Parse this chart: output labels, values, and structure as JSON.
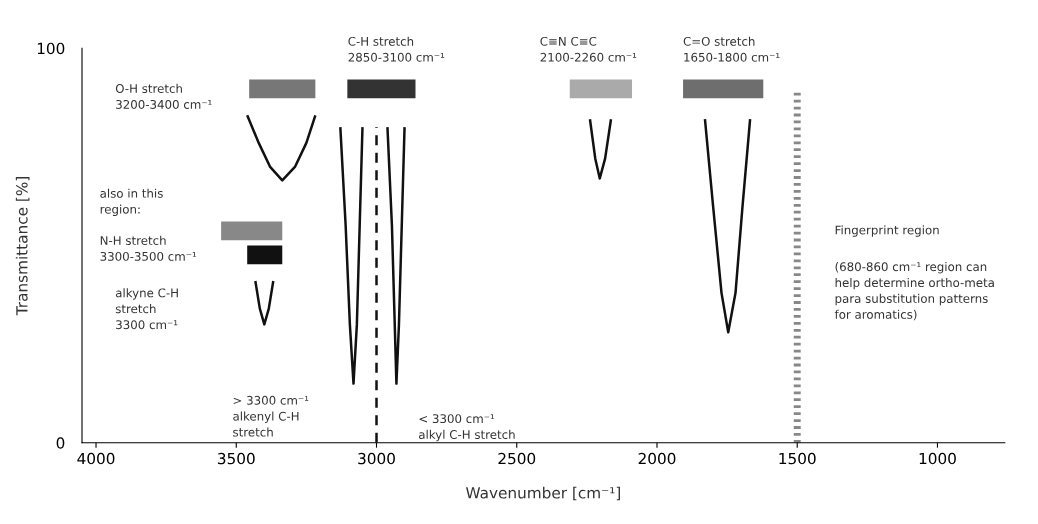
{
  "chart_data": {
    "type": "line",
    "xlabel": "Wavenumber [cm⁻¹]",
    "ylabel": "Transmittance [%]",
    "xlim": [
      4050,
      760
    ],
    "ylim": [
      0,
      100
    ],
    "xticks": [
      4000,
      3500,
      3000,
      2500,
      2000,
      1500,
      1000
    ],
    "yticks": [
      0,
      100
    ],
    "grid": false,
    "legend": false,
    "series": [
      {
        "color": "#111111",
        "line_style": "solid",
        "x": [
          3461,
          3420,
          3380,
          3336,
          3290,
          3250,
          3218
        ],
        "values": [
          83,
          76,
          70,
          66.5,
          70,
          76,
          83
        ]
      },
      {
        "color": "#111111",
        "line_style": "solid",
        "x": [
          3432,
          3416,
          3400,
          3384,
          3368
        ],
        "values": [
          41,
          34,
          30,
          34,
          41
        ]
      },
      {
        "color": "#111111",
        "line_style": "solid",
        "x": [
          3129,
          3110,
          3095,
          3082,
          3070,
          3060,
          3050
        ],
        "values": [
          80,
          55,
          30,
          15,
          30,
          55,
          80
        ]
      },
      {
        "color": "#111111",
        "line_style": "solid",
        "x": [
          2961,
          2945,
          2935,
          2929,
          2920,
          2910,
          2900
        ],
        "values": [
          80,
          55,
          30,
          15,
          30,
          55,
          80
        ]
      },
      {
        "color": "#111111",
        "line_style": "solid",
        "x": [
          2239,
          2220,
          2204,
          2185,
          2164
        ],
        "values": [
          82,
          72,
          67,
          72,
          82
        ]
      },
      {
        "color": "#111111",
        "line_style": "solid",
        "x": [
          1829,
          1800,
          1770,
          1746,
          1720,
          1695,
          1668
        ],
        "values": [
          82,
          60,
          38,
          28,
          38,
          60,
          82
        ]
      },
      {
        "color": "#111111",
        "line_style": "dashed",
        "x": [
          3000,
          3000
        ],
        "values": [
          0,
          80
        ]
      },
      {
        "color": "#888888",
        "line_style": "dotted",
        "x": [
          1500,
          1500
        ],
        "values": [
          0,
          89
        ]
      },
      {
        "color": "#777777",
        "x": [
          3454,
          3218
        ],
        "values": [
          89.7,
          89.7
        ]
      },
      {
        "color": "#333333",
        "x": [
          3104,
          2861
        ],
        "values": [
          89.7,
          89.7
        ]
      },
      {
        "color": "#aaaaaa",
        "x": [
          2311,
          2089
        ],
        "values": [
          89.7,
          89.7
        ]
      },
      {
        "color": "#6e6e6e",
        "x": [
          1907,
          1621
        ],
        "values": [
          89.7,
          89.7
        ]
      },
      {
        "color": "#888888",
        "x": [
          3554,
          3336
        ],
        "values": [
          53.7,
          53.7
        ]
      },
      {
        "color": "#111111",
        "x": [
          3461,
          3336
        ],
        "values": [
          47.6,
          47.6
        ]
      }
    ],
    "annotations": [
      "O-H stretch\n3200-3400 cm⁻¹",
      "C-H stretch\n2850-3100 cm⁻¹",
      "C≡N C≡C\n2100-2260 cm⁻¹",
      "C=O stretch\n1650-1800 cm⁻¹",
      "also in this\nregion:",
      "N-H stretch\n3300-3500 cm⁻¹",
      "alkyne C-H\nstretch\n3300 cm⁻¹",
      "> 3300 cm⁻¹\nalkenyl C-H\nstretch",
      "< 3300 cm⁻¹\nalkyl C-H stretch",
      "Fingerprint region",
      "(680-860 cm⁻¹ region can\nhelp determine ortho-meta\npara substitution patterns\nfor aromatics)"
    ]
  }
}
